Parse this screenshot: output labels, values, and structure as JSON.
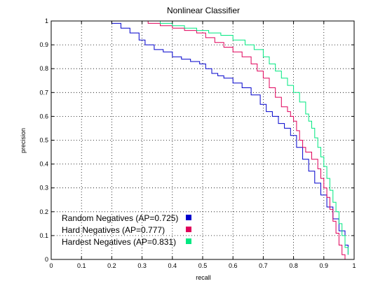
{
  "chart_data": {
    "type": "line",
    "title": "Nonlinear Classifier",
    "xlabel": "recall",
    "ylabel": "precision",
    "xlim": [
      0,
      1
    ],
    "ylim": [
      0,
      1
    ],
    "grid": true,
    "legend_position": "bottom-left",
    "xticks": [
      "0",
      "0.1",
      "0.2",
      "0.3",
      "0.4",
      "0.5",
      "0.6",
      "0.7",
      "0.8",
      "0.9",
      "1"
    ],
    "yticks": [
      "0",
      "0.1",
      "0.2",
      "0.3",
      "0.4",
      "0.5",
      "0.6",
      "0.7",
      "0.8",
      "0.9",
      "1"
    ],
    "series": [
      {
        "name": "Random Negatives (AP=0.725)",
        "color": "#0000cc",
        "x": [
          0.15,
          0.17,
          0.2,
          0.23,
          0.26,
          0.29,
          0.31,
          0.34,
          0.37,
          0.4,
          0.43,
          0.46,
          0.49,
          0.51,
          0.53,
          0.55,
          0.57,
          0.6,
          0.63,
          0.66,
          0.69,
          0.71,
          0.73,
          0.75,
          0.77,
          0.79,
          0.81,
          0.83,
          0.85,
          0.87,
          0.89,
          0.91,
          0.93,
          0.95,
          0.97,
          0.98
        ],
        "y": [
          1.0,
          1.0,
          0.99,
          0.97,
          0.95,
          0.92,
          0.9,
          0.88,
          0.87,
          0.85,
          0.84,
          0.83,
          0.82,
          0.8,
          0.78,
          0.77,
          0.76,
          0.74,
          0.72,
          0.69,
          0.65,
          0.62,
          0.6,
          0.57,
          0.55,
          0.52,
          0.47,
          0.42,
          0.37,
          0.32,
          0.27,
          0.22,
          0.17,
          0.12,
          0.06,
          0.02
        ]
      },
      {
        "name": "Hard Negatives (AP=0.777)",
        "color": "#e0005a",
        "x": [
          0.25,
          0.28,
          0.32,
          0.36,
          0.4,
          0.44,
          0.48,
          0.51,
          0.54,
          0.57,
          0.6,
          0.63,
          0.66,
          0.68,
          0.7,
          0.72,
          0.74,
          0.76,
          0.78,
          0.79,
          0.8,
          0.81,
          0.82,
          0.83,
          0.84,
          0.86,
          0.88,
          0.89,
          0.9,
          0.91,
          0.92,
          0.93,
          0.94,
          0.95,
          0.96,
          0.97
        ],
        "y": [
          1.0,
          1.0,
          0.99,
          0.98,
          0.97,
          0.96,
          0.95,
          0.93,
          0.91,
          0.89,
          0.87,
          0.85,
          0.82,
          0.79,
          0.76,
          0.72,
          0.68,
          0.64,
          0.62,
          0.6,
          0.58,
          0.54,
          0.5,
          0.47,
          0.45,
          0.42,
          0.38,
          0.34,
          0.3,
          0.26,
          0.21,
          0.16,
          0.11,
          0.06,
          0.02,
          0.0
        ]
      },
      {
        "name": "Hardest Negatives (AP=0.831)",
        "color": "#00e880",
        "x": [
          0.28,
          0.32,
          0.36,
          0.4,
          0.44,
          0.48,
          0.52,
          0.56,
          0.6,
          0.64,
          0.67,
          0.7,
          0.72,
          0.74,
          0.76,
          0.78,
          0.8,
          0.82,
          0.84,
          0.85,
          0.86,
          0.87,
          0.88,
          0.89,
          0.9,
          0.91,
          0.92,
          0.93,
          0.94,
          0.95,
          0.96,
          0.97,
          0.98
        ],
        "y": [
          1.0,
          1.0,
          0.99,
          0.98,
          0.97,
          0.96,
          0.95,
          0.94,
          0.92,
          0.9,
          0.88,
          0.85,
          0.82,
          0.79,
          0.76,
          0.73,
          0.7,
          0.66,
          0.61,
          0.58,
          0.55,
          0.51,
          0.47,
          0.43,
          0.39,
          0.34,
          0.29,
          0.24,
          0.2,
          0.15,
          0.1,
          0.05,
          0.02
        ]
      }
    ]
  }
}
